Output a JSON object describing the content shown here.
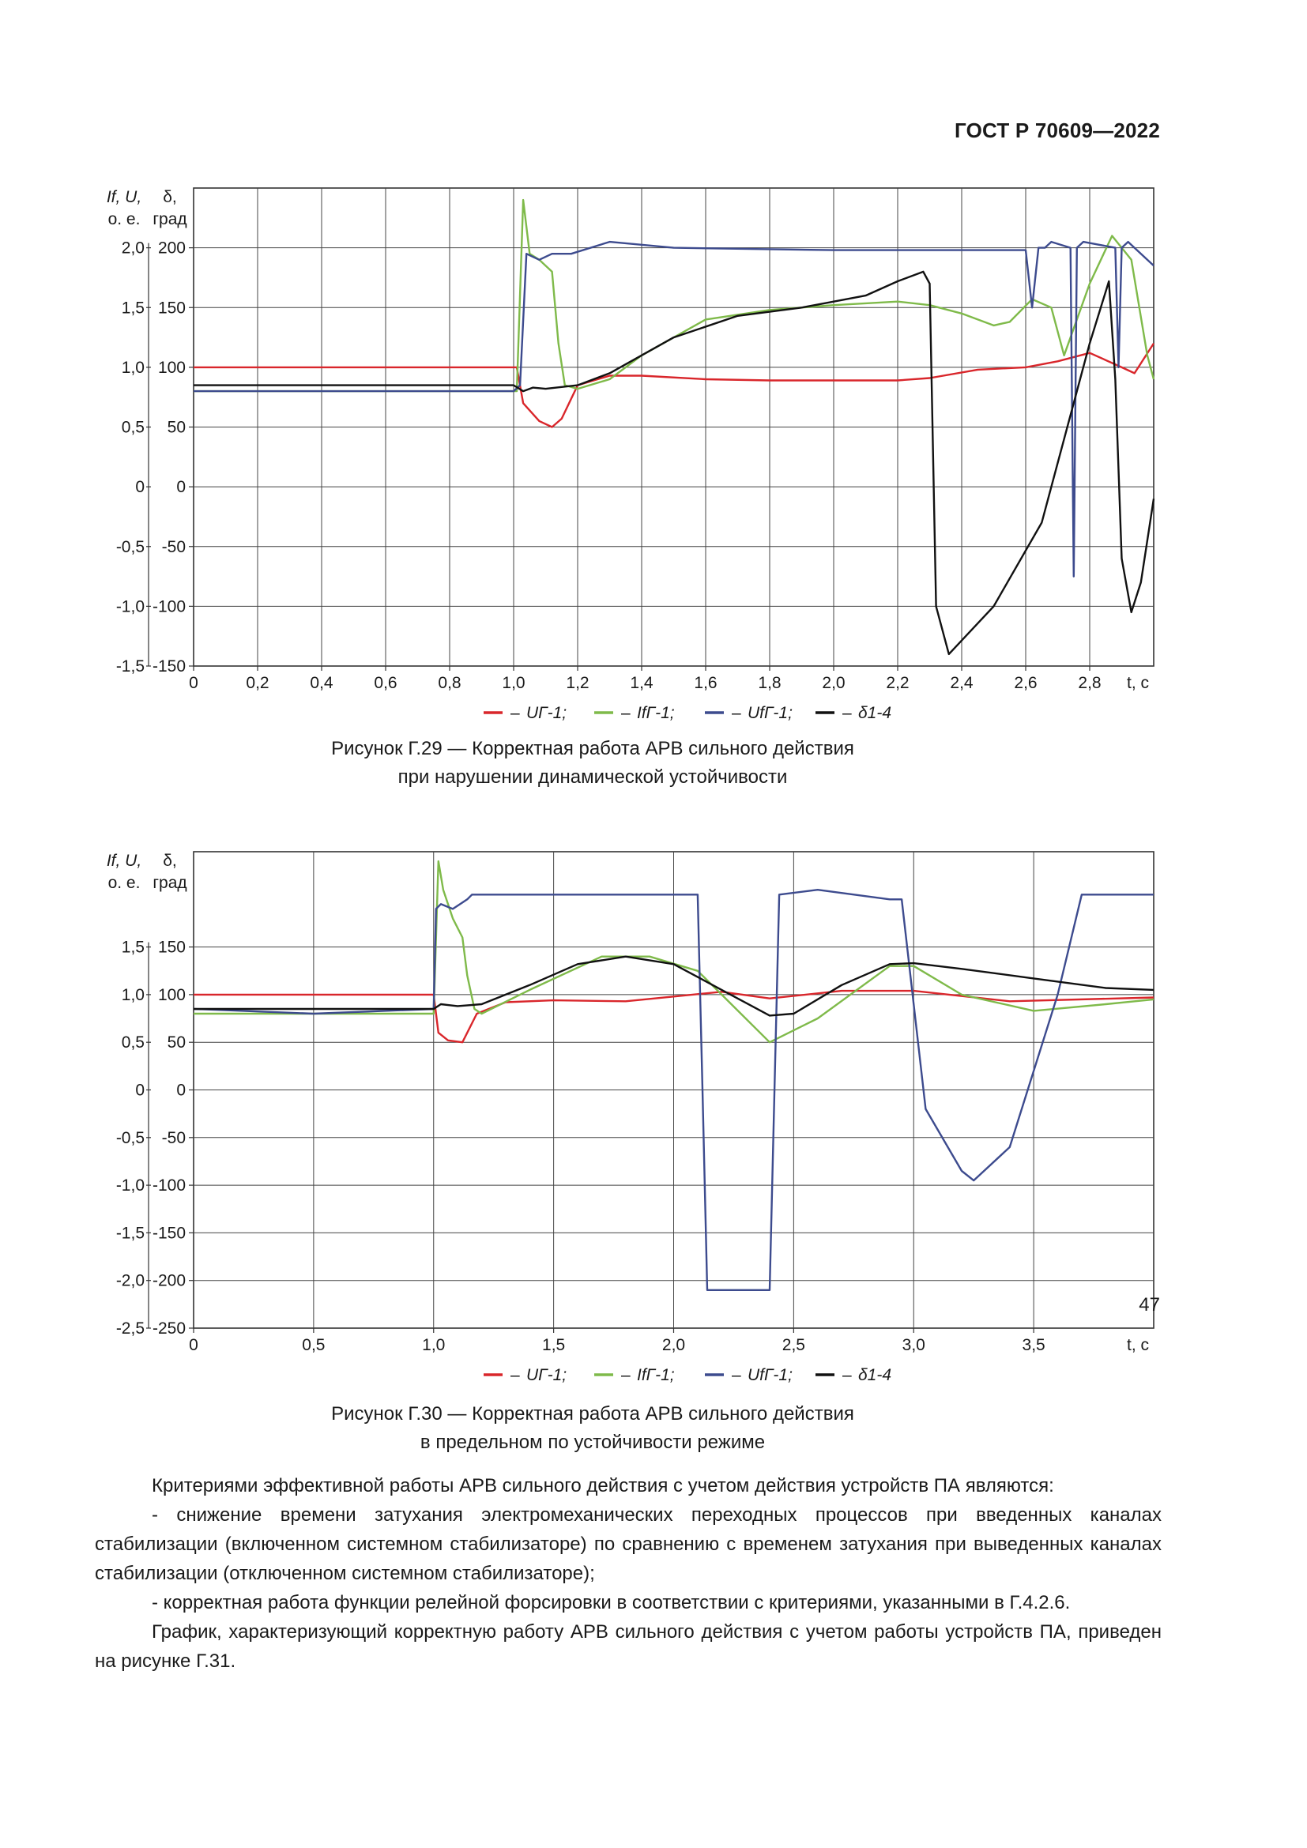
{
  "header": {
    "standard": "ГОСТ Р 70609—2022"
  },
  "legend_items": [
    {
      "dash": "–",
      "label": "UГ-1;",
      "color": "#d9262b"
    },
    {
      "dash": "–",
      "label": "IfГ-1;",
      "color": "#7fba4a"
    },
    {
      "dash": "–",
      "label": "UfГ-1;",
      "color": "#3d4b8e"
    },
    {
      "dash": "–",
      "label": "δ1-4",
      "color": "#111111"
    }
  ],
  "figure1": {
    "caption_line1": "Рисунок Г.29 — Корректная работа АРВ сильного действия",
    "caption_line2": "при нарушении динамической устойчивости",
    "chart_data": {
      "type": "line",
      "left_axis_title_1": "If, U,",
      "left_axis_title_2": "о. е.",
      "right_axis_title_1": "δ,",
      "right_axis_title_2": "град",
      "xlabel": "t, с",
      "xlim": [
        0,
        3.0
      ],
      "ylim_deg": [
        -150,
        250
      ],
      "x_ticks": [
        "0",
        "0,2",
        "0,4",
        "0,6",
        "0,8",
        "1,0",
        "1,2",
        "1,4",
        "1,6",
        "1,8",
        "2,0",
        "2,2",
        "2,4",
        "2,6",
        "2,8"
      ],
      "y_ticks_pu": [
        "2,0",
        "1,5",
        "1,0",
        "0,5",
        "0",
        "-0,5",
        "-1,0",
        "-1,5"
      ],
      "y_ticks_deg": [
        "200",
        "150",
        "100",
        "50",
        "0",
        "-50",
        "-100",
        "-150"
      ],
      "series": [
        {
          "name": "UГ-1",
          "color": "#d9262b",
          "x": [
            0,
            1.01,
            1.03,
            1.08,
            1.12,
            1.15,
            1.2,
            1.3,
            1.4,
            1.6,
            1.8,
            2.0,
            2.2,
            2.3,
            2.45,
            2.6,
            2.7,
            2.8,
            2.9,
            2.94,
            3.0
          ],
          "y": [
            100,
            100,
            70,
            55,
            50,
            57,
            85,
            93,
            93,
            90,
            89,
            89,
            89,
            91,
            98,
            100,
            105,
            112,
            100,
            95,
            120
          ]
        },
        {
          "name": "IfГ-1",
          "color": "#7fba4a",
          "x": [
            0,
            1.01,
            1.03,
            1.05,
            1.08,
            1.12,
            1.14,
            1.16,
            1.2,
            1.3,
            1.4,
            1.6,
            1.8,
            2.0,
            2.2,
            2.3,
            2.4,
            2.5,
            2.55,
            2.62,
            2.68,
            2.72,
            2.8,
            2.87,
            2.93,
            2.98,
            3.0
          ],
          "y": [
            80,
            80,
            240,
            195,
            190,
            180,
            120,
            85,
            82,
            90,
            110,
            140,
            148,
            152,
            155,
            152,
            145,
            135,
            138,
            157,
            150,
            110,
            170,
            210,
            190,
            110,
            90
          ]
        },
        {
          "name": "UfГ-1",
          "color": "#3d4b8e",
          "x": [
            0,
            0.2,
            0.4,
            0.6,
            0.8,
            1.0,
            1.02,
            1.04,
            1.08,
            1.12,
            1.14,
            1.18,
            1.3,
            1.5,
            2.0,
            2.5,
            2.6,
            2.62,
            2.64,
            2.66,
            2.68,
            2.74,
            2.75,
            2.76,
            2.78,
            2.88,
            2.89,
            2.9,
            2.92,
            3.0
          ],
          "y": [
            80,
            80,
            80,
            80,
            80,
            80,
            85,
            195,
            190,
            195,
            195,
            195,
            205,
            200,
            198,
            198,
            198,
            150,
            200,
            200,
            205,
            200,
            -75,
            200,
            205,
            200,
            100,
            200,
            205,
            185
          ]
        },
        {
          "name": "δ1-4",
          "color": "#111111",
          "x": [
            0,
            1.0,
            1.03,
            1.06,
            1.1,
            1.2,
            1.3,
            1.5,
            1.7,
            1.9,
            2.1,
            2.2,
            2.28,
            2.3,
            2.32,
            2.36,
            2.5,
            2.65,
            2.8,
            2.86,
            2.88,
            2.9,
            2.93,
            2.96,
            3.0
          ],
          "y": [
            85,
            85,
            80,
            83,
            82,
            85,
            95,
            125,
            143,
            150,
            160,
            172,
            180,
            170,
            -100,
            -140,
            -100,
            -30,
            120,
            172,
            90,
            -60,
            -105,
            -80,
            -10
          ]
        }
      ]
    }
  },
  "figure2": {
    "caption_line1": "Рисунок Г.30 — Корректная работа АРВ сильного действия",
    "caption_line2": "в предельном по устойчивости режиме",
    "chart_data": {
      "type": "line",
      "left_axis_title_1": "If, U,",
      "left_axis_title_2": "о. е.",
      "right_axis_title_1": "δ,",
      "right_axis_title_2": "град",
      "xlabel": "t, с",
      "xlim": [
        0,
        4.0
      ],
      "ylim_deg": [
        -250,
        250
      ],
      "x_ticks": [
        "0",
        "0,5",
        "1,0",
        "1,5",
        "2,0",
        "2,5",
        "3,0",
        "3,5"
      ],
      "y_ticks_pu": [
        "1,5",
        "1,0",
        "0,5",
        "0",
        "-0,5",
        "-1,0",
        "-1,5",
        "-2,0",
        "-2,5"
      ],
      "y_ticks_deg": [
        "150",
        "100",
        "50",
        "0",
        "-50",
        "-100",
        "-150",
        "-200",
        "-250"
      ],
      "series": [
        {
          "name": "UГ-1",
          "color": "#d9262b",
          "x": [
            0,
            1.0,
            1.02,
            1.06,
            1.12,
            1.18,
            1.3,
            1.5,
            1.8,
            2.0,
            2.2,
            2.4,
            2.7,
            3.0,
            3.4,
            4.0
          ],
          "y": [
            100,
            100,
            60,
            52,
            50,
            80,
            92,
            94,
            93,
            98,
            103,
            96,
            104,
            104,
            93,
            97
          ]
        },
        {
          "name": "IfГ-1",
          "color": "#7fba4a",
          "x": [
            0,
            1.0,
            1.02,
            1.04,
            1.08,
            1.12,
            1.14,
            1.17,
            1.2,
            1.4,
            1.7,
            1.9,
            2.1,
            2.2,
            2.4,
            2.6,
            2.9,
            3.0,
            3.2,
            3.5,
            3.8,
            4.0
          ],
          "y": [
            80,
            80,
            240,
            210,
            180,
            160,
            120,
            85,
            80,
            105,
            140,
            140,
            125,
            100,
            50,
            75,
            130,
            130,
            100,
            83,
            90,
            95
          ]
        },
        {
          "name": "UfГ-1",
          "color": "#3d4b8e",
          "x": [
            0,
            0.5,
            1.0,
            1.01,
            1.03,
            1.08,
            1.14,
            1.16,
            1.2,
            1.5,
            2.0,
            2.1,
            2.12,
            2.14,
            2.4,
            2.42,
            2.44,
            2.6,
            2.9,
            2.95,
            3.05,
            3.2,
            3.25,
            3.4,
            3.6,
            3.7,
            4.0
          ],
          "y": [
            85,
            80,
            85,
            190,
            195,
            190,
            200,
            205,
            205,
            205,
            205,
            205,
            0,
            -210,
            -210,
            0,
            205,
            210,
            200,
            200,
            -20,
            -85,
            -95,
            -60,
            100,
            205,
            205
          ]
        },
        {
          "name": "δ1-4",
          "color": "#111111",
          "x": [
            0,
            0.5,
            1.0,
            1.03,
            1.1,
            1.2,
            1.4,
            1.6,
            1.8,
            2.0,
            2.2,
            2.4,
            2.5,
            2.7,
            2.9,
            3.0,
            3.2,
            3.5,
            3.8,
            4.0
          ],
          "y": [
            85,
            85,
            85,
            90,
            88,
            90,
            110,
            132,
            140,
            132,
            105,
            78,
            80,
            110,
            132,
            133,
            127,
            117,
            107,
            105
          ]
        }
      ]
    }
  },
  "body": {
    "paragraphs": [
      "Критериями эффективной работы АРВ сильного действия с учетом действия устройств ПА являются:",
      "- снижение времени затухания электромеханических переходных процессов при введенных каналах стабилизации (включенном системном стабилизаторе) по сравнению с временем затухания при выведенных каналах стабилизации (отключенном системном стабилизаторе);",
      "- корректная работа функции релейной форсировки в соответствии с критериями, указанными в Г.4.2.6.",
      "График, характеризующий корректную работу АРВ сильного действия с учетом работы устройств ПА, приведен на рисунке Г.31."
    ]
  },
  "page": {
    "number": "47"
  }
}
